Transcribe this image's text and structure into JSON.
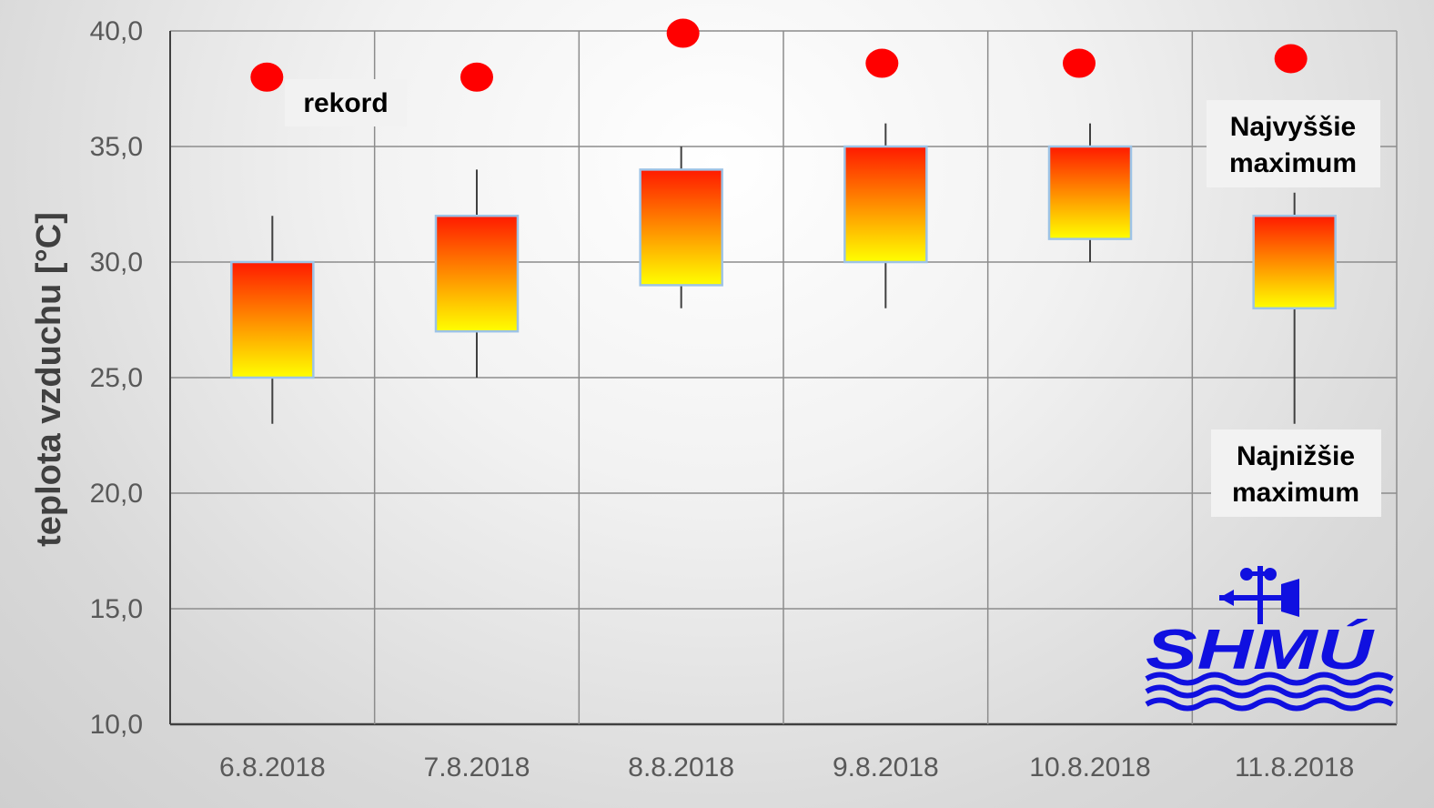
{
  "chart_data": {
    "type": "box",
    "categories": [
      "6.8.2018",
      "7.8.2018",
      "8.8.2018",
      "9.8.2018",
      "10.8.2018",
      "11.8.2018"
    ],
    "series": [
      {
        "boxes": [
          {
            "low": 23,
            "q1": 25,
            "q3": 30,
            "high": 32
          },
          {
            "low": 25,
            "q1": 27,
            "q3": 32,
            "high": 34
          },
          {
            "low": 28,
            "q1": 29,
            "q3": 34,
            "high": 35
          },
          {
            "low": 28,
            "q1": 30,
            "q3": 35,
            "high": 36
          },
          {
            "low": 30,
            "q1": 31,
            "q3": 35,
            "high": 36
          },
          {
            "low": 23,
            "q1": 28,
            "q3": 32,
            "high": 33
          }
        ]
      },
      {
        "values": [
          38.0,
          38.0,
          39.9,
          38.6,
          38.6,
          38.8
        ]
      }
    ],
    "ylabel": "teplota vzduchu [°C]",
    "xlabel": "",
    "ylim": [
      10,
      40
    ],
    "yticks": [
      "10,0",
      "15,0",
      "20,0",
      "25,0",
      "30,0",
      "35,0",
      "40,0"
    ],
    "grid": true,
    "colors": {
      "box_top": "#ff1a00",
      "box_bottom": "#ffff00",
      "box_border": "#9dc3e6",
      "marker": "#ff0000",
      "whisker": "#404040",
      "grid": "#8c8c8c"
    },
    "annotations": [
      {
        "lines": [
          "rekord"
        ],
        "points_to": "6.8.2018"
      },
      {
        "lines": [
          "Najvyššie",
          "maximum"
        ],
        "points_to": "11.8.2018"
      },
      {
        "lines": [
          "Najnižšie",
          "maximum"
        ],
        "points_to": "11.8.2018"
      }
    ]
  },
  "logo": {
    "text": "SHMÚ",
    "color": "#1010e0",
    "icon": "shmu-weather-vane-logo"
  }
}
